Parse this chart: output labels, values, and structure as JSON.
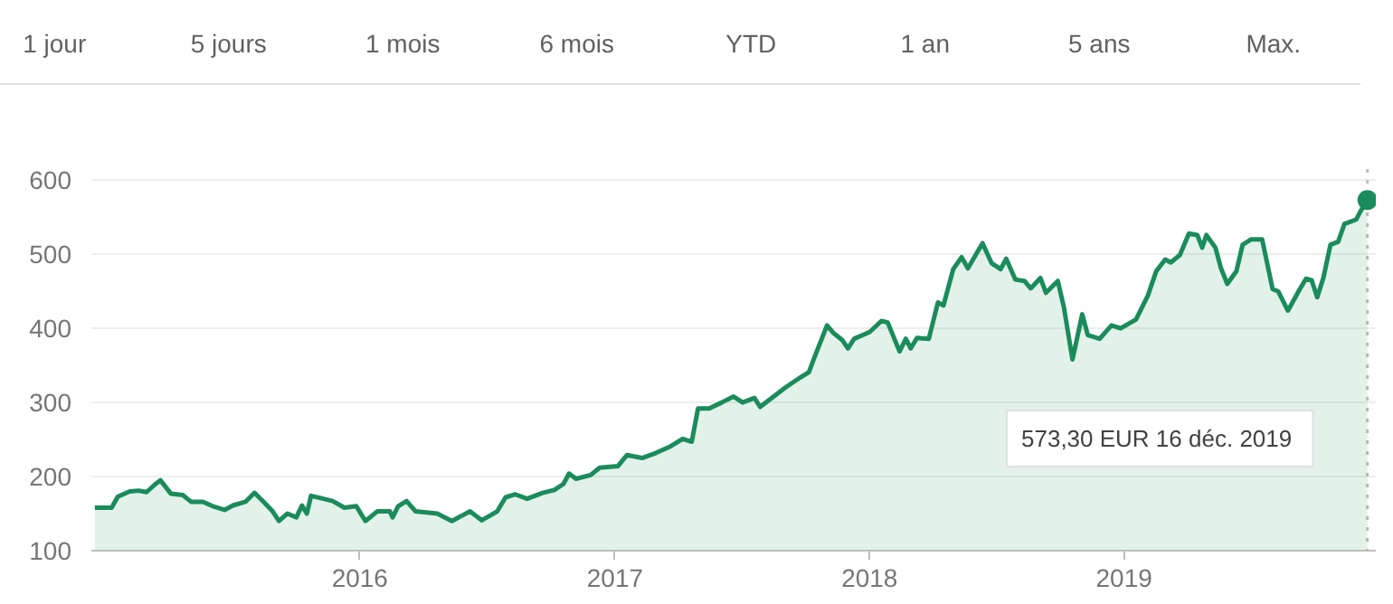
{
  "chart_data": {
    "type": "area",
    "annotations": [
      "1 jour",
      "5 jours",
      "1 mois",
      "6 mois",
      "YTD",
      "1 an",
      "5 ans",
      "Max.",
      "573,30 EUR  16 déc. 2019"
    ],
    "xlim": [
      "2014-12-12",
      "2019-12-28"
    ],
    "ylim": [
      100,
      615
    ],
    "xticks": [
      "2016",
      "2017",
      "2018",
      "2019"
    ],
    "yticks": [
      100,
      200,
      300,
      400,
      500,
      600
    ],
    "grid": "y",
    "ref_lines": [
      {
        "axis": "x",
        "value": "2019-12-16",
        "line_style": "dotted",
        "color": "#bdbdbd"
      }
    ],
    "series": [
      {
        "color": "#1a8c5b",
        "x": [
          "2014-12-17",
          "2015-01-10",
          "2015-01-19",
          "2015-02-05",
          "2015-02-18",
          "2015-03-01",
          "2015-03-14",
          "2015-03-21",
          "2015-04-05",
          "2015-04-22",
          "2015-05-04",
          "2015-05-21",
          "2015-06-04",
          "2015-06-21",
          "2015-07-03",
          "2015-07-21",
          "2015-08-03",
          "2015-08-16",
          "2015-08-29",
          "2015-09-07",
          "2015-09-19",
          "2015-10-02",
          "2015-10-10",
          "2015-10-17",
          "2015-10-23",
          "2015-11-06",
          "2015-11-23",
          "2015-12-10",
          "2015-12-27",
          "2016-01-09",
          "2016-01-26",
          "2016-02-13",
          "2016-02-17",
          "2016-02-25",
          "2016-03-08",
          "2016-03-21",
          "2016-04-21",
          "2016-05-12",
          "2016-06-07",
          "2016-06-24",
          "2016-07-16",
          "2016-07-28",
          "2016-08-11",
          "2016-08-28",
          "2016-09-19",
          "2016-10-06",
          "2016-10-19",
          "2016-10-27",
          "2016-11-06",
          "2016-11-27",
          "2016-12-10",
          "2017-01-05",
          "2017-01-18",
          "2017-02-09",
          "2017-03-01",
          "2017-03-22",
          "2017-04-08",
          "2017-04-21",
          "2017-04-30",
          "2017-05-16",
          "2017-06-03",
          "2017-06-20",
          "2017-07-03",
          "2017-07-20",
          "2017-07-28",
          "2017-08-11",
          "2017-09-02",
          "2017-09-24",
          "2017-10-06",
          "2017-10-14",
          "2017-11-01",
          "2017-11-10",
          "2017-11-23",
          "2017-12-01",
          "2017-12-10",
          "2018-01-01",
          "2018-01-18",
          "2018-01-27",
          "2018-02-13",
          "2018-02-22",
          "2018-03-01",
          "2018-03-10",
          "2018-03-27",
          "2018-04-09",
          "2018-04-17",
          "2018-05-01",
          "2018-05-13",
          "2018-05-22",
          "2018-06-12",
          "2018-06-25",
          "2018-07-08",
          "2018-07-16",
          "2018-07-29",
          "2018-08-11",
          "2018-08-20",
          "2018-09-03",
          "2018-09-11",
          "2018-09-28",
          "2018-10-07",
          "2018-10-19",
          "2018-11-02",
          "2018-11-10",
          "2018-11-27",
          "2018-12-14",
          "2018-12-27",
          "2019-01-18",
          "2019-02-04",
          "2019-02-16",
          "2019-03-01",
          "2019-03-09",
          "2019-03-22",
          "2019-04-04",
          "2019-04-16",
          "2019-04-23",
          "2019-04-29",
          "2019-05-12",
          "2019-05-20",
          "2019-05-29",
          "2019-06-11",
          "2019-06-20",
          "2019-07-02",
          "2019-07-18",
          "2019-08-02",
          "2019-08-10",
          "2019-08-24",
          "2019-09-10",
          "2019-09-19",
          "2019-09-27",
          "2019-10-05",
          "2019-10-14",
          "2019-10-24",
          "2019-11-04",
          "2019-11-13",
          "2019-11-30",
          "2019-12-06",
          "2019-12-16"
        ],
        "values": [
          158,
          158,
          173,
          180,
          181,
          179,
          190,
          195,
          177,
          175,
          166,
          166,
          160,
          155,
          161,
          166,
          178,
          166,
          153,
          140,
          150,
          145,
          161,
          150,
          174,
          171,
          167,
          158,
          160,
          140,
          153,
          153,
          145,
          160,
          167,
          153,
          150,
          140,
          153,
          141,
          153,
          172,
          176,
          170,
          178,
          182,
          190,
          204,
          197,
          202,
          212,
          214,
          229,
          225,
          232,
          241,
          251,
          247,
          292,
          292,
          300,
          308,
          300,
          306,
          294,
          304,
          320,
          334,
          341,
          361,
          404,
          394,
          384,
          373,
          386,
          395,
          410,
          408,
          369,
          386,
          373,
          387,
          386,
          435,
          431,
          480,
          496,
          481,
          515,
          488,
          480,
          494,
          466,
          464,
          454,
          468,
          448,
          464,
          427,
          358,
          419,
          391,
          386,
          404,
          400,
          412,
          444,
          477,
          493,
          489,
          499,
          528,
          526,
          509,
          526,
          509,
          481,
          460,
          477,
          513,
          520,
          520,
          453,
          450,
          424,
          453,
          467,
          465,
          442,
          469,
          513,
          517,
          541,
          547,
          558,
          573.3
        ]
      },
      {
        "type": "scatter",
        "marker": "circle",
        "color": "#1a8c5b",
        "x": [
          "2019-12-16"
        ],
        "values": [
          573.3
        ]
      }
    ]
  }
}
